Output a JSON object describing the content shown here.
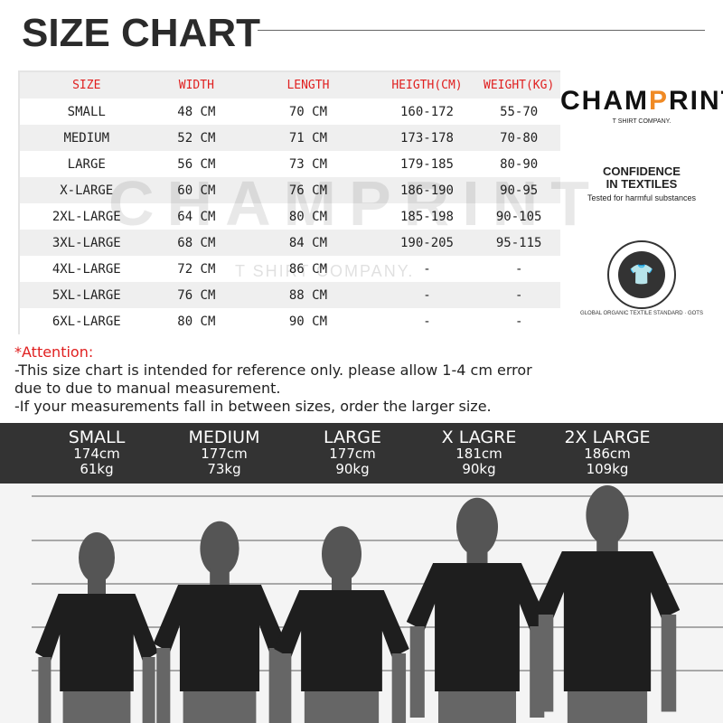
{
  "title": "SIZE CHART",
  "table": {
    "headers": [
      "SIZE",
      "WIDTH",
      "LENGTH",
      "HEIGTH(CM)",
      "WEIGHT(KG)"
    ],
    "rows": [
      [
        "SMALL",
        "48 CM",
        "70 CM",
        "160-172",
        "55-70"
      ],
      [
        "MEDIUM",
        "52 CM",
        "71 CM",
        "173-178",
        "70-80"
      ],
      [
        "LARGE",
        "56 CM",
        "73 CM",
        "179-185",
        "80-90"
      ],
      [
        "X-LARGE",
        "60 CM",
        "76 CM",
        "186-190",
        "90-95"
      ],
      [
        "2XL-LARGE",
        "64 CM",
        "80 CM",
        "185-198",
        "90-105"
      ],
      [
        "3XL-LARGE",
        "68 CM",
        "84 CM",
        "190-205",
        "95-115"
      ],
      [
        "4XL-LARGE",
        "72 CM",
        "86 CM",
        "-",
        "-"
      ],
      [
        "5XL-LARGE",
        "76 CM",
        "88 CM",
        "-",
        "-"
      ],
      [
        "6XL-LARGE",
        "80 CM",
        "90 CM",
        "-",
        "-"
      ]
    ]
  },
  "watermark": {
    "brand": "CHAMPRINT",
    "sub": "T SHIRT COMPANY."
  },
  "logos": {
    "brand_a": "CHAM",
    "brand_p": "P",
    "brand_b": "RINT",
    "brand_sub": "T SHIRT COMPANY.",
    "cit_line1": "CONFIDENCE",
    "cit_line2": "IN TEXTILES",
    "cit_sub": "Tested for harmful substances",
    "gots": "GLOBAL ORGANIC TEXTILE STANDARD · GOTS"
  },
  "attention": {
    "label": "*Attention:",
    "lines": [
      "-This size chart is intended for reference only. please allow 1-4 cm error",
      "due to due to manual measurement.",
      "-If your measurements fall in between sizes, order the larger size."
    ]
  },
  "models": [
    {
      "size": "SMALL",
      "height": "174cm",
      "weight": "61kg"
    },
    {
      "size": "MEDIUM",
      "height": "177cm",
      "weight": "73kg"
    },
    {
      "size": "LARGE",
      "height": "177cm",
      "weight": "90kg"
    },
    {
      "size": "X LAGRE",
      "height": "181cm",
      "weight": "90kg"
    },
    {
      "size": "2X LARGE",
      "height": "186cm",
      "weight": "109kg"
    }
  ],
  "colors": {
    "header_text": "#e02020",
    "band": "#333333",
    "accent": "#f08a24"
  }
}
